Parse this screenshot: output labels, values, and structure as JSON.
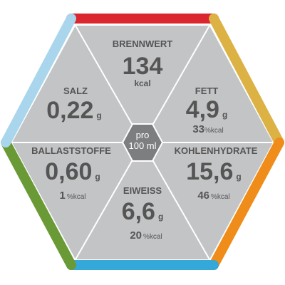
{
  "center": {
    "line1": "pro",
    "line2": "100 ml"
  },
  "segments": [
    {
      "name": "BRENNWERT",
      "value": "134",
      "unit": "kcal"
    },
    {
      "name": "FETT",
      "value": "4,9",
      "unit": "g",
      "percent": "33",
      "percent_unit": "%kcal"
    },
    {
      "name": "KOHLENHYDRATE",
      "value": "15,6",
      "unit": "g",
      "percent": "46",
      "percent_unit": "%kcal"
    },
    {
      "name": "EIWEISS",
      "value": "6,6",
      "unit": "g",
      "percent": "20",
      "percent_unit": "%kcal"
    },
    {
      "name": "BALLASTSTOFFE",
      "value": "0,60",
      "unit": "g",
      "percent": "1",
      "percent_unit": "%kcal"
    },
    {
      "name": "SALZ",
      "value": "0,22",
      "unit": "g"
    }
  ]
}
